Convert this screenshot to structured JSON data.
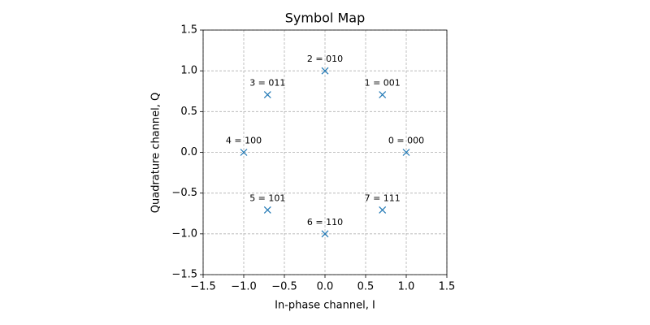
{
  "chart_data": {
    "type": "scatter",
    "title": "Symbol Map",
    "xlabel": "In-phase channel, I",
    "ylabel": "Quadrature channel, Q",
    "x": [
      1,
      0.707,
      0,
      -0.707,
      -1,
      -0.707,
      0,
      0.707
    ],
    "values": [
      0,
      0.707,
      1,
      0.707,
      0,
      -0.707,
      -1,
      -0.707
    ],
    "point_labels": [
      "0 = 000",
      "1 = 001",
      "2 = 010",
      "3 = 011",
      "4 = 100",
      "5 = 101",
      "6 = 110",
      "7 = 111"
    ],
    "color": "#1f77b4",
    "marker": "x",
    "xlim": [
      -1.5,
      1.5
    ],
    "ylim": [
      -1.5,
      1.5
    ],
    "xticks": [
      {
        "value": -1.5,
        "label": "−1.5"
      },
      {
        "value": -1,
        "label": "−1.0"
      },
      {
        "value": -0.5,
        "label": "−0.5"
      },
      {
        "value": 0,
        "label": "0.0"
      },
      0.5,
      {
        "value": 1,
        "label": "1.0"
      },
      1.5
    ],
    "yticks": [
      {
        "value": -1.5,
        "label": "−1.5"
      },
      {
        "value": -1,
        "label": "−1.0"
      },
      {
        "value": -0.5,
        "label": "−0.5"
      },
      {
        "value": 0,
        "label": "0.0"
      },
      0.5,
      {
        "value": 1,
        "label": "1.0"
      },
      1.5
    ],
    "grid": true
  }
}
